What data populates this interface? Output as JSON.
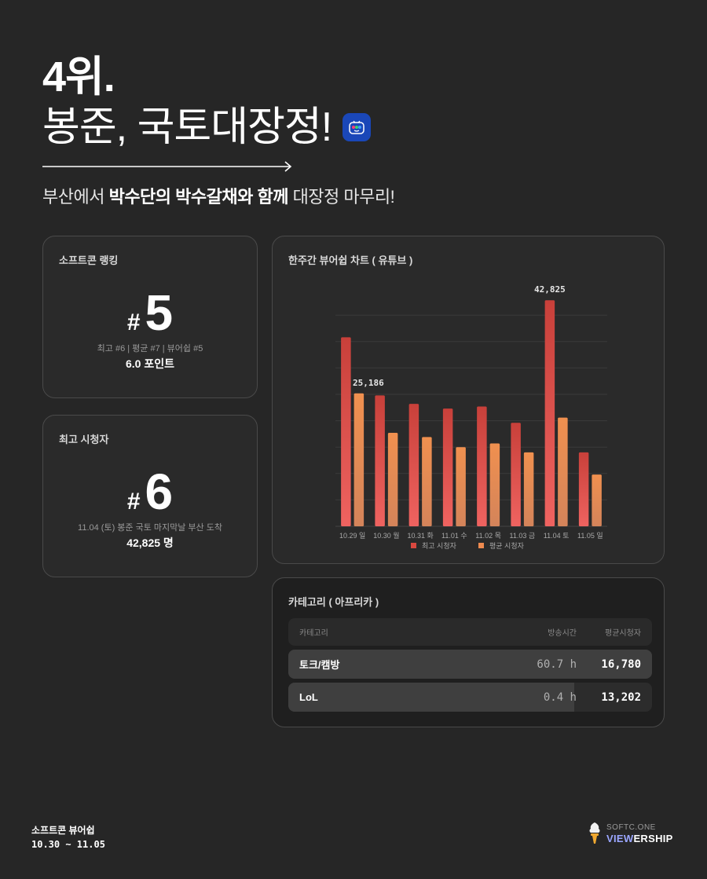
{
  "hero": {
    "rank": "4위.",
    "title": "봉준, 국토대장정!",
    "subtitle_parts": [
      "부산에서 ",
      "박수단의 박수갈채와 함께",
      " 대장정 마무리!"
    ],
    "app_icon": "afreeca-tv-app-icon"
  },
  "ranking_card": {
    "title": "소프트콘 랭킹",
    "hash": "#",
    "rank": "5",
    "detail": "최고 #6 | 평균 #7 | 뷰어쉽 #5",
    "points": "6.0 포인트"
  },
  "peak_card": {
    "title": "최고 시청자",
    "hash": "#",
    "rank": "6",
    "detail": "11.04 (토) 봉준 국토 마지막날 부산 도착",
    "viewers": "42,825 명"
  },
  "chart_card": {
    "title": "한주간 뷰어쉽 차트 ( 유튜브 )"
  },
  "chart_data": {
    "type": "bar",
    "title": "한주간 뷰어쉽 차트 ( 유튜브 )",
    "categories": [
      "10.29 일",
      "10.30 월",
      "10.31 화",
      "11.01 수",
      "11.02 목",
      "11.03 금",
      "11.04 토",
      "11.05 일"
    ],
    "series": [
      {
        "name": "최고 시청자",
        "color": "#d9483f",
        "values": [
          35800,
          24800,
          23200,
          22300,
          22700,
          19600,
          42825,
          14000
        ]
      },
      {
        "name": "평균 시청자",
        "color": "#ee8a4f",
        "values": [
          25186,
          17700,
          16900,
          15000,
          15700,
          14000,
          20600,
          9800
        ]
      }
    ],
    "annotations": [
      {
        "series": "최고 시청자",
        "category": "11.04 토",
        "label": "42,825"
      },
      {
        "series": "평균 시청자",
        "category": "10.29 일",
        "label": "25,186"
      }
    ],
    "ylim": [
      0,
      40000
    ],
    "grid": true,
    "gridline_step": 5000,
    "show_y_ticks": false,
    "legend_position": "bottom",
    "xlabel": "",
    "ylabel": ""
  },
  "category_card": {
    "title": "카테고리 ( 아프리카 )",
    "headers": {
      "name": "카테고리",
      "hours": "방송시간",
      "avg": "평균시청자"
    },
    "rows": [
      {
        "name": "토크/캠방",
        "hours": "60.7 h",
        "avg": "16,780",
        "fill_pct": 100
      },
      {
        "name": "LoL",
        "hours": "0.4 h",
        "avg": "13,202",
        "fill_pct": 78.7
      }
    ]
  },
  "footer": {
    "title": "소프트콘 뷰어쉽",
    "range": "10.30 ~ 11.05",
    "logo_top": "SOFTC.ONE",
    "logo_hl": "VIEW",
    "logo_rest": "ERSHIP"
  }
}
